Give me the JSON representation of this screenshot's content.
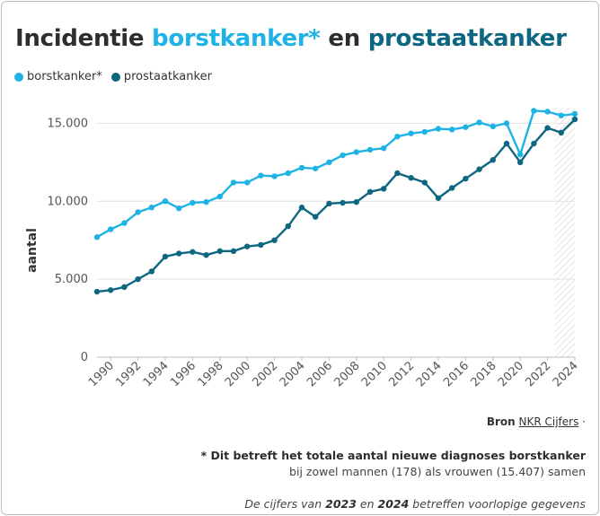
{
  "header": {
    "title_prefix": "Incidentie",
    "title_series1": "borstkanker*",
    "title_mid": "en",
    "title_series2": "prostaatkanker"
  },
  "colors": {
    "borstkanker": "#1fb3e5",
    "prostaatkanker": "#0e6780",
    "grid": "#e2e2e2",
    "axis_text": "#555555"
  },
  "footer": {
    "source_label": "Bron",
    "source_link": "NKR Cijfers",
    "source_sep": "·",
    "note_bold": "* Dit betreft het totale aantal nieuwe diagnoses borstkanker",
    "note_sub": "bij zowel mannen (178) als vrouwen (15.407) samen",
    "provisional_prefix": "De cijfers van",
    "provisional_year1": "2023",
    "provisional_mid": "en",
    "provisional_year2": "2024",
    "provisional_suffix": "betreffen voorlopige gegevens"
  },
  "chart_data": {
    "type": "line",
    "ylabel": "aantal",
    "xlabel": "",
    "ylim": [
      0,
      16000
    ],
    "yticks": [
      0,
      5000,
      10000,
      15000
    ],
    "ytick_labels": [
      "0",
      "5.000",
      "10.000",
      "15.000"
    ],
    "xtick_years": [
      1990,
      1992,
      1994,
      1996,
      1998,
      2000,
      2002,
      2004,
      2006,
      2008,
      2010,
      2012,
      2014,
      2016,
      2018,
      2020,
      2022,
      2024
    ],
    "x": [
      1989,
      1990,
      1991,
      1992,
      1993,
      1994,
      1995,
      1996,
      1997,
      1998,
      1999,
      2000,
      2001,
      2002,
      2003,
      2004,
      2005,
      2006,
      2007,
      2008,
      2009,
      2010,
      2011,
      2012,
      2013,
      2014,
      2015,
      2016,
      2017,
      2018,
      2019,
      2020,
      2021,
      2022,
      2023,
      2024
    ],
    "provisional_years": [
      2023,
      2024
    ],
    "grid": true,
    "legend_position": "top-left",
    "series": [
      {
        "name": "borstkanker*",
        "color": "#1fb3e5",
        "values": [
          7700,
          8200,
          8600,
          9300,
          9600,
          10000,
          9550,
          9900,
          9950,
          10300,
          11200,
          11200,
          11650,
          11600,
          11800,
          12150,
          12100,
          12500,
          12950,
          13150,
          13300,
          13400,
          14150,
          14350,
          14450,
          14650,
          14600,
          14750,
          15050,
          14800,
          15000,
          13000,
          15800,
          15750,
          15500,
          15600
        ]
      },
      {
        "name": "prostaatkanker",
        "color": "#0e6780",
        "values": [
          4200,
          4300,
          4500,
          5000,
          5500,
          6450,
          6650,
          6750,
          6550,
          6800,
          6800,
          7100,
          7200,
          7500,
          8400,
          9600,
          9000,
          9850,
          9900,
          9950,
          10600,
          10800,
          11800,
          11500,
          11200,
          10200,
          10850,
          11450,
          12050,
          12650,
          13700,
          12500,
          13700,
          14700,
          14400,
          15250
        ]
      }
    ]
  }
}
